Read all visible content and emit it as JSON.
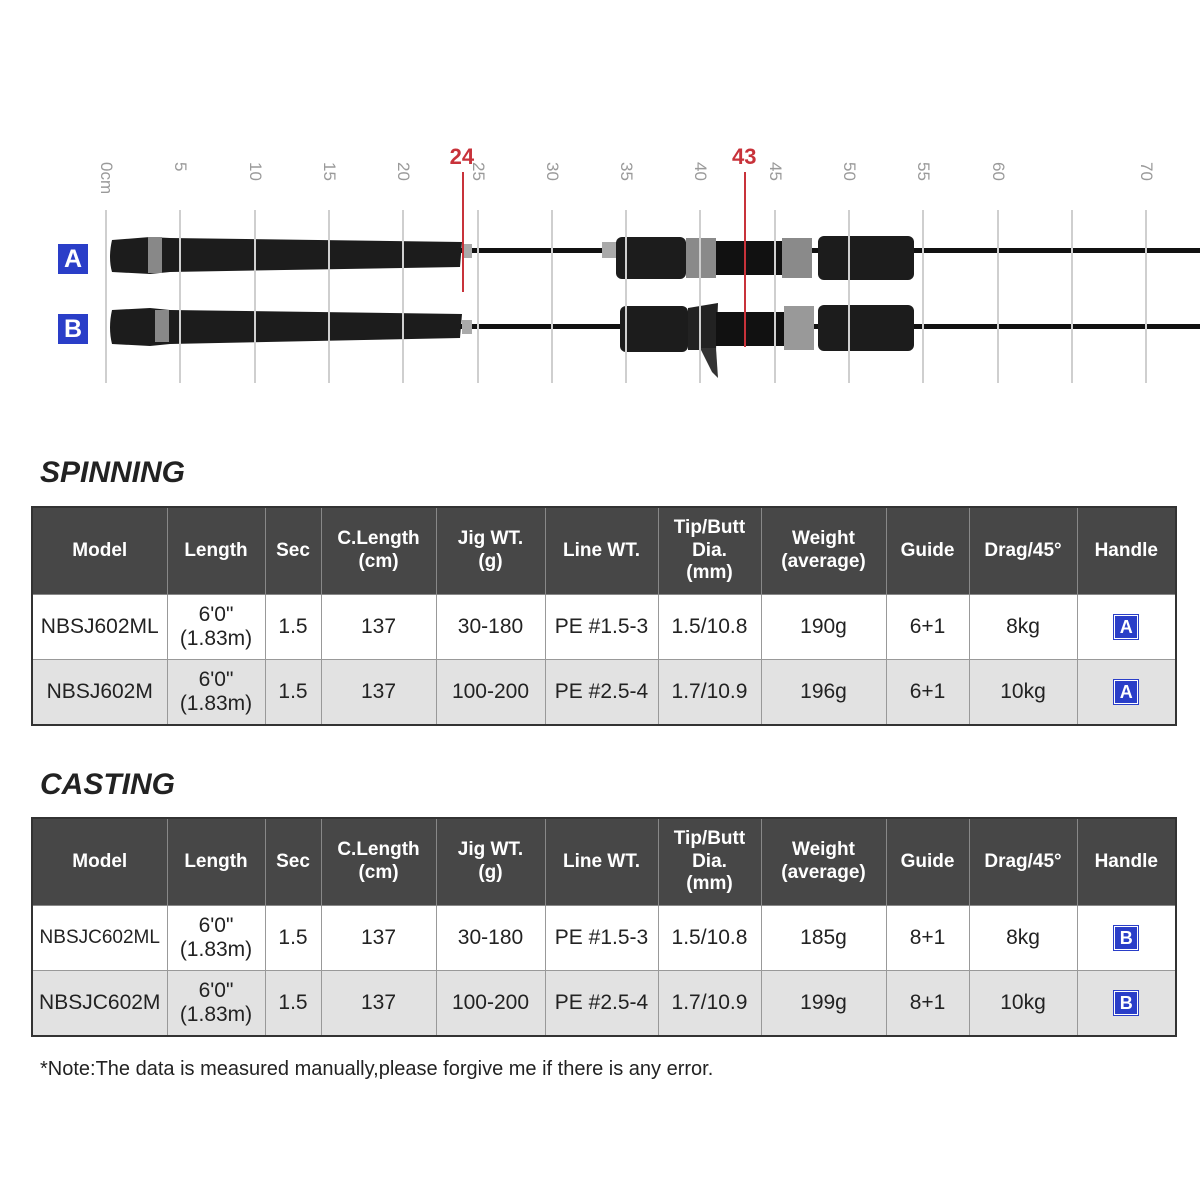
{
  "ruler": {
    "ticks": [
      "0cm",
      "5",
      "10",
      "15",
      "20",
      "25",
      "30",
      "35",
      "40",
      "45",
      "50",
      "55",
      "60",
      "",
      "70"
    ],
    "markers": [
      "24",
      "43"
    ],
    "accent_color": "#c8323a",
    "rods": [
      {
        "label": "A",
        "type": "spinning handle"
      },
      {
        "label": "B",
        "type": "casting handle"
      }
    ]
  },
  "columns": [
    "Model",
    "Length",
    "Sec",
    "C.Length\n(cm)",
    "Jig WT.\n(g)",
    "Line WT.",
    "Tip/Butt\nDia.\n(mm)",
    "Weight\n(average)",
    "Guide",
    "Drag/45°",
    "Handle"
  ],
  "spinning": {
    "title": "SPINNING",
    "rows": [
      [
        "NBSJ602ML",
        "6'0\"\n(1.83m)",
        "1.5",
        "137",
        "30-180",
        "PE #1.5-3",
        "1.5/10.8",
        "190g",
        "6+1",
        "8kg",
        "A"
      ],
      [
        "NBSJ602M",
        "6'0\"\n(1.83m)",
        "1.5",
        "137",
        "100-200",
        "PE #2.5-4",
        "1.7/10.9",
        "196g",
        "6+1",
        "10kg",
        "A"
      ]
    ]
  },
  "casting": {
    "title": "CASTING",
    "rows": [
      [
        "NBSJC602ML",
        "6'0\"\n(1.83m)",
        "1.5",
        "137",
        "30-180",
        "PE #1.5-3",
        "1.5/10.8",
        "185g",
        "8+1",
        "8kg",
        "B"
      ],
      [
        "NBSJC602M",
        "6'0\"\n(1.83m)",
        "1.5",
        "137",
        "100-200",
        "PE #2.5-4",
        "1.7/10.9",
        "199g",
        "8+1",
        "10kg",
        "B"
      ]
    ]
  },
  "note": "*Note:The data is measured manually,please forgive me if there is any error."
}
